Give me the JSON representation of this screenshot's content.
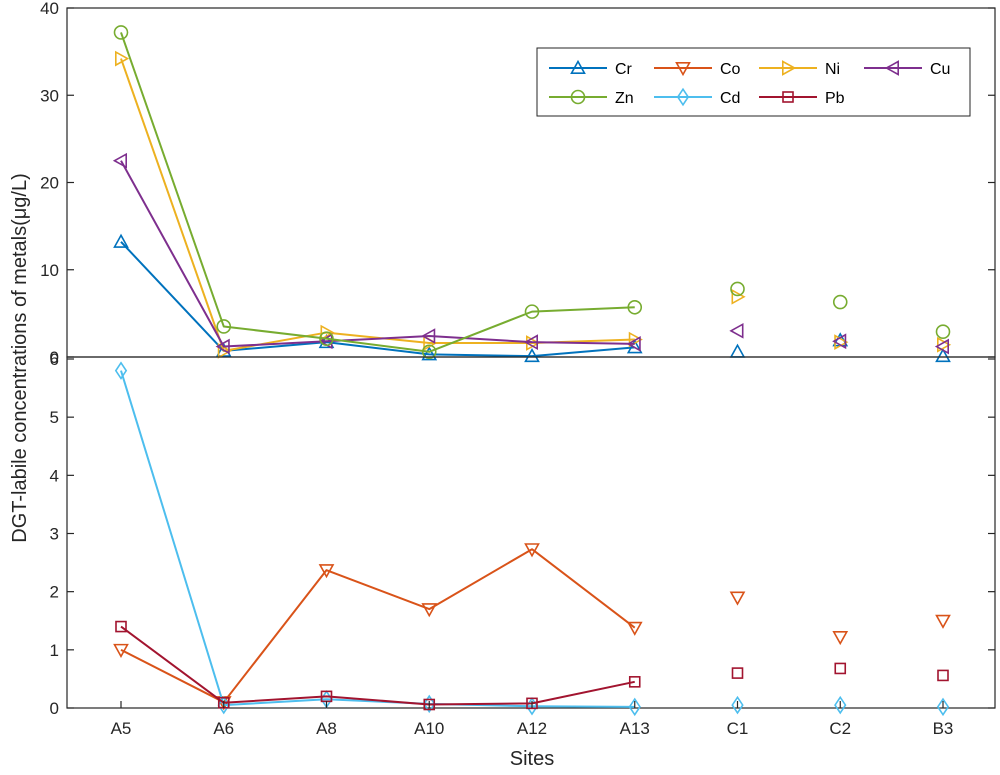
{
  "chart_data": {
    "type": "line",
    "ylabel": "DGT-labile concentrations of metals(μg/L)",
    "xlabel": "Sites",
    "categories": [
      "A5",
      "A6",
      "A8",
      "A10",
      "A12",
      "A13",
      "C1",
      "C2",
      "B3"
    ],
    "connected_count": 6,
    "colors": {
      "Cr": "#0072BD",
      "Co": "#D95319",
      "Ni": "#EDB120",
      "Cu": "#7E2F8E",
      "Zn": "#77AC30",
      "Cd": "#4DBEEE",
      "Pb": "#A2142F"
    },
    "markers": {
      "Cr": "triangle-up",
      "Co": "triangle-down",
      "Ni": "triangle-right",
      "Cu": "triangle-left",
      "Zn": "circle",
      "Cd": "diamond",
      "Pb": "square"
    },
    "legend": [
      "Cr",
      "Co",
      "Ni",
      "Cu",
      "Zn",
      "Cd",
      "Pb"
    ],
    "panels": [
      {
        "ylim": [
          0,
          40
        ],
        "yticks": [
          "0",
          "10",
          "20",
          "30",
          "40"
        ],
        "series": [
          {
            "name": "Cr",
            "values": [
              13.2,
              0.7,
              1.7,
              0.3,
              0.1,
              1.1,
              0.6,
              1.9,
              0.1
            ]
          },
          {
            "name": "Ni",
            "values": [
              34.2,
              0.7,
              2.8,
              1.6,
              1.6,
              2.0,
              6.9,
              1.7,
              1.4
            ]
          },
          {
            "name": "Cu",
            "values": [
              22.5,
              1.2,
              1.8,
              2.4,
              1.7,
              1.5,
              3.0,
              1.8,
              1.2
            ]
          },
          {
            "name": "Zn",
            "values": [
              37.2,
              3.5,
              2.1,
              0.6,
              5.2,
              5.7,
              7.8,
              6.3,
              2.9
            ]
          }
        ]
      },
      {
        "ylim": [
          0,
          6.2
        ],
        "yticks": [
          "0",
          "1",
          "2",
          "3",
          "4",
          "5",
          "6"
        ],
        "series": [
          {
            "name": "Co",
            "values": [
              1.0,
              0.1,
              2.37,
              1.7,
              2.73,
              1.38,
              1.9,
              1.22,
              1.5
            ]
          },
          {
            "name": "Cd",
            "values": [
              5.8,
              0.05,
              0.15,
              0.07,
              0.03,
              0.02,
              0.05,
              0.05,
              0.02
            ]
          },
          {
            "name": "Pb",
            "values": [
              1.4,
              0.09,
              0.2,
              0.06,
              0.08,
              0.45,
              0.6,
              0.68,
              0.56
            ]
          }
        ]
      }
    ]
  }
}
